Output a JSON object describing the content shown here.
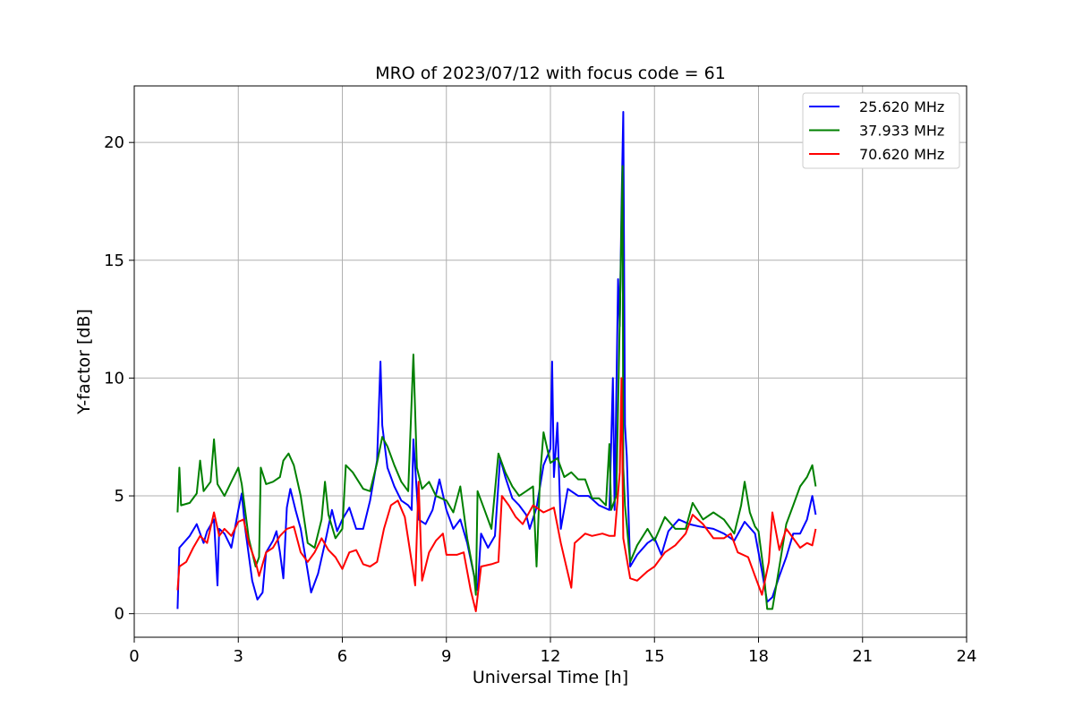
{
  "chart_data": {
    "type": "line",
    "title": "MRO of 2023/07/12 with focus code = 61",
    "xlabel": "Universal Time [h]",
    "ylabel": "Y-factor [dB]",
    "xlim": [
      0,
      24
    ],
    "ylim": [
      -1,
      22.4
    ],
    "xticks": [
      0,
      3,
      6,
      9,
      12,
      15,
      18,
      21,
      24
    ],
    "yticks": [
      0,
      5,
      10,
      15,
      20
    ],
    "grid": true,
    "legend_position": "top-right",
    "series": [
      {
        "name": "25.620 MHz",
        "color": "#0000ff",
        "points": [
          [
            1.25,
            0.2
          ],
          [
            1.3,
            2.8
          ],
          [
            1.6,
            3.3
          ],
          [
            1.8,
            3.8
          ],
          [
            2.0,
            3.0
          ],
          [
            2.1,
            3.5
          ],
          [
            2.3,
            4.0
          ],
          [
            2.4,
            1.2
          ],
          [
            2.45,
            3.6
          ],
          [
            2.6,
            3.4
          ],
          [
            2.8,
            2.8
          ],
          [
            3.0,
            4.4
          ],
          [
            3.1,
            5.1
          ],
          [
            3.2,
            3.6
          ],
          [
            3.4,
            1.4
          ],
          [
            3.55,
            0.6
          ],
          [
            3.7,
            0.9
          ],
          [
            3.8,
            2.6
          ],
          [
            4.0,
            3.1
          ],
          [
            4.1,
            3.5
          ],
          [
            4.2,
            2.6
          ],
          [
            4.3,
            1.5
          ],
          [
            4.4,
            4.5
          ],
          [
            4.5,
            5.3
          ],
          [
            4.65,
            4.4
          ],
          [
            4.8,
            3.6
          ],
          [
            5.0,
            1.8
          ],
          [
            5.1,
            0.9
          ],
          [
            5.3,
            1.7
          ],
          [
            5.5,
            3.0
          ],
          [
            5.7,
            4.4
          ],
          [
            5.85,
            3.5
          ],
          [
            6.0,
            4.0
          ],
          [
            6.2,
            4.5
          ],
          [
            6.4,
            3.6
          ],
          [
            6.6,
            3.6
          ],
          [
            6.8,
            4.8
          ],
          [
            7.0,
            6.5
          ],
          [
            7.1,
            10.7
          ],
          [
            7.15,
            8.0
          ],
          [
            7.3,
            6.2
          ],
          [
            7.5,
            5.4
          ],
          [
            7.7,
            4.8
          ],
          [
            7.9,
            4.6
          ],
          [
            8.0,
            4.4
          ],
          [
            8.05,
            7.4
          ],
          [
            8.2,
            4.0
          ],
          [
            8.4,
            3.8
          ],
          [
            8.6,
            4.4
          ],
          [
            8.8,
            5.7
          ],
          [
            9.0,
            4.4
          ],
          [
            9.2,
            3.6
          ],
          [
            9.4,
            4.0
          ],
          [
            9.6,
            3.0
          ],
          [
            9.8,
            1.6
          ],
          [
            9.9,
            1.0
          ],
          [
            10.0,
            3.4
          ],
          [
            10.2,
            2.8
          ],
          [
            10.4,
            3.3
          ],
          [
            10.55,
            6.6
          ],
          [
            10.7,
            5.8
          ],
          [
            10.9,
            4.9
          ],
          [
            11.1,
            4.6
          ],
          [
            11.3,
            4.2
          ],
          [
            11.4,
            3.6
          ],
          [
            11.6,
            4.5
          ],
          [
            11.8,
            6.3
          ],
          [
            12.0,
            7.0
          ],
          [
            12.05,
            10.7
          ],
          [
            12.1,
            5.8
          ],
          [
            12.2,
            8.1
          ],
          [
            12.3,
            3.6
          ],
          [
            12.5,
            5.3
          ],
          [
            12.8,
            5.0
          ],
          [
            13.1,
            5.0
          ],
          [
            13.4,
            4.6
          ],
          [
            13.7,
            4.4
          ],
          [
            13.8,
            10.0
          ],
          [
            13.85,
            4.4
          ],
          [
            13.95,
            14.2
          ],
          [
            14.0,
            12.2
          ],
          [
            14.05,
            17.2
          ],
          [
            14.1,
            21.3
          ],
          [
            14.15,
            8.0
          ],
          [
            14.2,
            6.7
          ],
          [
            14.3,
            2.0
          ],
          [
            14.5,
            2.5
          ],
          [
            14.8,
            3.0
          ],
          [
            15.0,
            3.2
          ],
          [
            15.2,
            2.5
          ],
          [
            15.4,
            3.5
          ],
          [
            15.7,
            4.0
          ],
          [
            16.0,
            3.8
          ],
          [
            16.3,
            3.7
          ],
          [
            16.7,
            3.6
          ],
          [
            17.0,
            3.4
          ],
          [
            17.3,
            3.1
          ],
          [
            17.6,
            3.9
          ],
          [
            17.9,
            3.4
          ],
          [
            18.1,
            1.8
          ],
          [
            18.25,
            0.5
          ],
          [
            18.4,
            0.7
          ],
          [
            18.6,
            1.6
          ],
          [
            18.8,
            2.4
          ],
          [
            19.0,
            3.4
          ],
          [
            19.2,
            3.4
          ],
          [
            19.4,
            4.0
          ],
          [
            19.55,
            5.0
          ],
          [
            19.65,
            4.2
          ]
        ]
      },
      {
        "name": "37.933 MHz",
        "color": "#008000",
        "points": [
          [
            1.25,
            4.3
          ],
          [
            1.3,
            6.2
          ],
          [
            1.35,
            4.6
          ],
          [
            1.6,
            4.7
          ],
          [
            1.8,
            5.1
          ],
          [
            1.9,
            6.5
          ],
          [
            2.0,
            5.2
          ],
          [
            2.2,
            5.6
          ],
          [
            2.3,
            7.4
          ],
          [
            2.4,
            5.5
          ],
          [
            2.6,
            5.0
          ],
          [
            2.8,
            5.6
          ],
          [
            3.0,
            6.2
          ],
          [
            3.1,
            5.5
          ],
          [
            3.3,
            3.2
          ],
          [
            3.5,
            2.0
          ],
          [
            3.6,
            2.4
          ],
          [
            3.65,
            6.2
          ],
          [
            3.8,
            5.5
          ],
          [
            4.0,
            5.6
          ],
          [
            4.2,
            5.8
          ],
          [
            4.3,
            6.5
          ],
          [
            4.45,
            6.8
          ],
          [
            4.6,
            6.3
          ],
          [
            4.8,
            5.0
          ],
          [
            5.0,
            3.0
          ],
          [
            5.2,
            2.8
          ],
          [
            5.4,
            4.0
          ],
          [
            5.5,
            5.6
          ],
          [
            5.6,
            4.2
          ],
          [
            5.8,
            3.2
          ],
          [
            6.0,
            3.6
          ],
          [
            6.1,
            6.3
          ],
          [
            6.3,
            6.0
          ],
          [
            6.6,
            5.3
          ],
          [
            6.8,
            5.2
          ],
          [
            7.0,
            6.4
          ],
          [
            7.15,
            7.5
          ],
          [
            7.3,
            7.1
          ],
          [
            7.5,
            6.3
          ],
          [
            7.7,
            5.6
          ],
          [
            7.9,
            5.2
          ],
          [
            8.05,
            11.0
          ],
          [
            8.15,
            6.2
          ],
          [
            8.3,
            5.3
          ],
          [
            8.5,
            5.6
          ],
          [
            8.7,
            5.0
          ],
          [
            9.0,
            4.8
          ],
          [
            9.2,
            4.3
          ],
          [
            9.4,
            5.4
          ],
          [
            9.6,
            3.2
          ],
          [
            9.8,
            1.6
          ],
          [
            9.85,
            0.8
          ],
          [
            9.9,
            5.2
          ],
          [
            10.1,
            4.4
          ],
          [
            10.3,
            3.6
          ],
          [
            10.5,
            6.8
          ],
          [
            10.7,
            6.0
          ],
          [
            10.9,
            5.4
          ],
          [
            11.1,
            5.0
          ],
          [
            11.3,
            5.2
          ],
          [
            11.5,
            5.4
          ],
          [
            11.6,
            2.0
          ],
          [
            11.7,
            5.8
          ],
          [
            11.8,
            7.7
          ],
          [
            12.0,
            6.4
          ],
          [
            12.2,
            6.6
          ],
          [
            12.4,
            5.8
          ],
          [
            12.6,
            6.0
          ],
          [
            12.8,
            5.7
          ],
          [
            13.0,
            5.7
          ],
          [
            13.2,
            4.9
          ],
          [
            13.4,
            4.9
          ],
          [
            13.6,
            4.6
          ],
          [
            13.7,
            7.2
          ],
          [
            13.75,
            4.4
          ],
          [
            13.9,
            5.0
          ],
          [
            14.0,
            12.5
          ],
          [
            14.05,
            16.5
          ],
          [
            14.08,
            19.0
          ],
          [
            14.1,
            6.2
          ],
          [
            14.15,
            4.6
          ],
          [
            14.3,
            2.2
          ],
          [
            14.5,
            2.9
          ],
          [
            14.8,
            3.6
          ],
          [
            15.0,
            3.1
          ],
          [
            15.3,
            4.1
          ],
          [
            15.6,
            3.6
          ],
          [
            15.9,
            3.6
          ],
          [
            16.1,
            4.7
          ],
          [
            16.4,
            4.0
          ],
          [
            16.7,
            4.3
          ],
          [
            17.0,
            4.0
          ],
          [
            17.3,
            3.4
          ],
          [
            17.5,
            4.6
          ],
          [
            17.6,
            5.6
          ],
          [
            17.75,
            4.3
          ],
          [
            17.9,
            3.7
          ],
          [
            18.0,
            3.5
          ],
          [
            18.15,
            1.8
          ],
          [
            18.25,
            0.2
          ],
          [
            18.4,
            0.2
          ],
          [
            18.6,
            2.0
          ],
          [
            18.8,
            3.8
          ],
          [
            19.0,
            4.6
          ],
          [
            19.2,
            5.4
          ],
          [
            19.4,
            5.8
          ],
          [
            19.55,
            6.3
          ],
          [
            19.65,
            5.4
          ]
        ]
      },
      {
        "name": "70.620 MHz",
        "color": "#ff0000",
        "points": [
          [
            1.25,
            1.0
          ],
          [
            1.3,
            2.0
          ],
          [
            1.5,
            2.2
          ],
          [
            1.7,
            2.8
          ],
          [
            1.9,
            3.3
          ],
          [
            2.1,
            3.0
          ],
          [
            2.3,
            4.3
          ],
          [
            2.45,
            3.3
          ],
          [
            2.6,
            3.6
          ],
          [
            2.8,
            3.3
          ],
          [
            3.0,
            3.9
          ],
          [
            3.15,
            4.0
          ],
          [
            3.3,
            3.0
          ],
          [
            3.5,
            2.2
          ],
          [
            3.6,
            1.6
          ],
          [
            3.8,
            2.6
          ],
          [
            4.0,
            2.8
          ],
          [
            4.2,
            3.3
          ],
          [
            4.4,
            3.6
          ],
          [
            4.6,
            3.7
          ],
          [
            4.8,
            2.6
          ],
          [
            5.0,
            2.2
          ],
          [
            5.2,
            2.6
          ],
          [
            5.4,
            3.2
          ],
          [
            5.6,
            2.7
          ],
          [
            5.8,
            2.4
          ],
          [
            6.0,
            1.9
          ],
          [
            6.2,
            2.6
          ],
          [
            6.4,
            2.7
          ],
          [
            6.6,
            2.1
          ],
          [
            6.8,
            2.0
          ],
          [
            7.0,
            2.2
          ],
          [
            7.2,
            3.6
          ],
          [
            7.4,
            4.6
          ],
          [
            7.6,
            4.8
          ],
          [
            7.8,
            4.1
          ],
          [
            8.0,
            2.2
          ],
          [
            8.1,
            1.2
          ],
          [
            8.2,
            5.6
          ],
          [
            8.3,
            1.4
          ],
          [
            8.5,
            2.6
          ],
          [
            8.7,
            3.1
          ],
          [
            8.9,
            3.4
          ],
          [
            9.0,
            2.5
          ],
          [
            9.3,
            2.5
          ],
          [
            9.5,
            2.6
          ],
          [
            9.7,
            1.0
          ],
          [
            9.85,
            0.1
          ],
          [
            10.0,
            2.0
          ],
          [
            10.3,
            2.1
          ],
          [
            10.5,
            2.2
          ],
          [
            10.6,
            5.0
          ],
          [
            10.8,
            4.6
          ],
          [
            11.0,
            4.1
          ],
          [
            11.2,
            3.8
          ],
          [
            11.5,
            4.6
          ],
          [
            11.8,
            4.3
          ],
          [
            12.1,
            4.5
          ],
          [
            12.3,
            3.0
          ],
          [
            12.6,
            1.1
          ],
          [
            12.7,
            3.0
          ],
          [
            13.0,
            3.4
          ],
          [
            13.2,
            3.3
          ],
          [
            13.5,
            3.4
          ],
          [
            13.7,
            3.3
          ],
          [
            13.85,
            3.3
          ],
          [
            14.0,
            6.0
          ],
          [
            14.05,
            10.0
          ],
          [
            14.1,
            3.2
          ],
          [
            14.3,
            1.5
          ],
          [
            14.5,
            1.4
          ],
          [
            14.8,
            1.8
          ],
          [
            15.0,
            2.0
          ],
          [
            15.3,
            2.6
          ],
          [
            15.6,
            2.9
          ],
          [
            15.9,
            3.4
          ],
          [
            16.1,
            4.2
          ],
          [
            16.4,
            3.8
          ],
          [
            16.7,
            3.2
          ],
          [
            17.0,
            3.2
          ],
          [
            17.2,
            3.4
          ],
          [
            17.4,
            2.6
          ],
          [
            17.7,
            2.4
          ],
          [
            17.9,
            1.6
          ],
          [
            18.1,
            0.8
          ],
          [
            18.3,
            2.2
          ],
          [
            18.4,
            4.3
          ],
          [
            18.6,
            2.7
          ],
          [
            18.8,
            3.6
          ],
          [
            19.0,
            3.2
          ],
          [
            19.2,
            2.8
          ],
          [
            19.4,
            3.0
          ],
          [
            19.55,
            2.9
          ],
          [
            19.65,
            3.6
          ]
        ]
      }
    ]
  }
}
